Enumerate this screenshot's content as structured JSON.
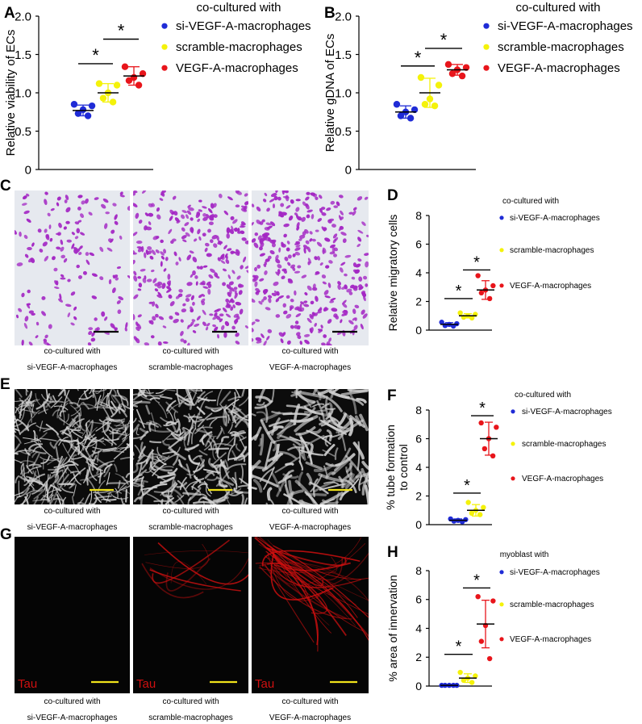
{
  "colors": {
    "si": "#1f2bd6",
    "scramble": "#f4f20a",
    "vegf": "#e8151b",
    "axis": "#000000",
    "micro_bg": "#e6e9ef",
    "micro_cell": "#a428c4",
    "tube_bg": "#0c0c0c",
    "tube_line": "#d0d0d0",
    "tau_bg": "#050505",
    "tau_fiber": "#d01010",
    "scalebar_dark": "#000000",
    "scalebar_yellow": "#f0e21a"
  },
  "legend_groups": [
    "si-VEGF-A-macrophages",
    "scramble-macrophages",
    "VEGF-A-macrophages"
  ],
  "sig_marker": "*",
  "panel_letters": {
    "A": "A",
    "B": "B",
    "C": "C",
    "D": "D",
    "E": "E",
    "F": "F",
    "G": "G",
    "H": "H"
  },
  "image_panels": {
    "C": {
      "captions": [
        [
          "co-cultured with",
          "si-VEGF-A-macrophages"
        ],
        [
          "co-cultured with",
          "scramble-macrophages"
        ],
        [
          "co-cultured with",
          "VEGF-A-macrophages"
        ]
      ]
    },
    "E": {
      "captions": [
        [
          "co-cultured with",
          "si-VEGF-A-macrophages"
        ],
        [
          "co-cultured with",
          "scramble-macrophages"
        ],
        [
          "co-cultured with",
          "VEGF-A-macrophages"
        ]
      ]
    },
    "G": {
      "stain": "Tau",
      "captions": [
        [
          "co-cultured with",
          "si-VEGF-A-macrophages"
        ],
        [
          "co-cultured with",
          "scramble-macrophages"
        ],
        [
          "co-cultured with",
          "VEGF-A-macrophages"
        ]
      ]
    }
  },
  "chart_data": [
    {
      "panel": "A",
      "type": "scatter",
      "legend_title": "co-cultured with",
      "ylabel": "Relative viability of ECs",
      "ylim": [
        0,
        2.0
      ],
      "yticks": [
        "0",
        "0.5",
        "1.0",
        "1.5",
        "2.0"
      ],
      "ytick_values": [
        0,
        0.5,
        1.0,
        1.5,
        2.0
      ],
      "groups": [
        {
          "name": "si-VEGF-A-macrophages",
          "color_key": "si",
          "mean": 0.77,
          "sd": 0.07,
          "points": [
            0.85,
            0.83,
            0.78,
            0.73,
            0.7
          ]
        },
        {
          "name": "scramble-macrophages",
          "color_key": "scramble",
          "mean": 1.0,
          "sd": 0.12,
          "points": [
            1.12,
            1.1,
            1.0,
            0.93,
            0.88
          ]
        },
        {
          "name": "VEGF-A-macrophages",
          "color_key": "vegf",
          "mean": 1.22,
          "sd": 0.12,
          "points": [
            1.34,
            1.25,
            1.2,
            1.16,
            1.1
          ]
        }
      ],
      "significance": [
        {
          "from": 0,
          "to": 1,
          "y": 1.38
        },
        {
          "from": 1,
          "to": 2,
          "y": 1.7
        }
      ]
    },
    {
      "panel": "B",
      "type": "scatter",
      "legend_title": "co-cultured with",
      "ylabel": "Relative gDNA of ECs",
      "ylim": [
        0,
        2.0
      ],
      "yticks": [
        "0",
        "0.5",
        "1.0",
        "1.5",
        "2.0"
      ],
      "ytick_values": [
        0,
        0.5,
        1.0,
        1.5,
        2.0
      ],
      "groups": [
        {
          "name": "si-VEGF-A-macrophages",
          "color_key": "si",
          "mean": 0.75,
          "sd": 0.08,
          "points": [
            0.85,
            0.78,
            0.75,
            0.7,
            0.67
          ]
        },
        {
          "name": "scramble-macrophages",
          "color_key": "scramble",
          "mean": 1.0,
          "sd": 0.19,
          "points": [
            1.2,
            1.1,
            0.92,
            0.85,
            0.83
          ]
        },
        {
          "name": "VEGF-A-macrophages",
          "color_key": "vegf",
          "mean": 1.3,
          "sd": 0.07,
          "points": [
            1.37,
            1.33,
            1.3,
            1.25,
            1.22
          ]
        }
      ],
      "significance": [
        {
          "from": 0,
          "to": 1,
          "y": 1.35
        },
        {
          "from": 1,
          "to": 2,
          "y": 1.58
        }
      ]
    },
    {
      "panel": "D",
      "type": "scatter",
      "legend_title": "co-cultured with",
      "ylabel": "Relative migratory cells",
      "ylim": [
        0,
        8
      ],
      "yticks": [
        "0",
        "2",
        "4",
        "6",
        "8"
      ],
      "ytick_values": [
        0,
        2,
        4,
        6,
        8
      ],
      "groups": [
        {
          "name": "si-VEGF-A-macrophages",
          "color_key": "si",
          "mean": 0.4,
          "sd": 0.12,
          "points": [
            0.55,
            0.45,
            0.4,
            0.32,
            0.28
          ]
        },
        {
          "name": "scramble-macrophages",
          "color_key": "scramble",
          "mean": 1.0,
          "sd": 0.15,
          "points": [
            1.2,
            1.1,
            1.0,
            0.9,
            0.85
          ]
        },
        {
          "name": "VEGF-A-macrophages",
          "color_key": "vegf",
          "mean": 2.8,
          "sd": 0.65,
          "points": [
            3.8,
            3.1,
            2.8,
            2.6,
            2.2
          ]
        }
      ],
      "significance": [
        {
          "from": 0,
          "to": 1,
          "y": 2.2
        },
        {
          "from": 1,
          "to": 2,
          "y": 4.2
        }
      ]
    },
    {
      "panel": "F",
      "type": "scatter",
      "legend_title": "co-cultured with",
      "ylabel": [
        "% tube formation",
        "to control"
      ],
      "ylim": [
        0,
        8
      ],
      "yticks": [
        "0",
        "2",
        "4",
        "6",
        "8"
      ],
      "ytick_values": [
        0,
        2,
        4,
        6,
        8
      ],
      "groups": [
        {
          "name": "si-VEGF-A-macrophages",
          "color_key": "si",
          "mean": 0.3,
          "sd": 0.1,
          "points": [
            0.4,
            0.35,
            0.3,
            0.25,
            0.2
          ]
        },
        {
          "name": "scramble-macrophages",
          "color_key": "scramble",
          "mean": 1.0,
          "sd": 0.4,
          "points": [
            1.55,
            1.2,
            1.0,
            0.8,
            0.7
          ]
        },
        {
          "name": "VEGF-A-macrophages",
          "color_key": "vegf",
          "mean": 6.0,
          "sd": 1.15,
          "points": [
            7.1,
            6.8,
            6.0,
            5.3,
            4.8
          ]
        }
      ],
      "significance": [
        {
          "from": 0,
          "to": 1,
          "y": 2.2
        },
        {
          "from": 1,
          "to": 2,
          "y": 7.6
        }
      ]
    },
    {
      "panel": "H",
      "type": "scatter",
      "legend_title": "myoblast with",
      "ylabel": "% area of innervation",
      "ylim": [
        0,
        8
      ],
      "yticks": [
        "0",
        "2",
        "4",
        "6",
        "8"
      ],
      "ytick_values": [
        0,
        2,
        4,
        6,
        8
      ],
      "groups": [
        {
          "name": "si-VEGF-A-macrophages",
          "color_key": "si",
          "mean": 0.05,
          "sd": 0.03,
          "points": [
            0.05,
            0.05,
            0.05,
            0.05,
            0.05
          ]
        },
        {
          "name": "scramble-macrophages",
          "color_key": "scramble",
          "mean": 0.55,
          "sd": 0.3,
          "points": [
            0.95,
            0.7,
            0.55,
            0.4,
            0.25
          ]
        },
        {
          "name": "VEGF-A-macrophages",
          "color_key": "vegf",
          "mean": 4.3,
          "sd": 1.65,
          "points": [
            6.2,
            5.9,
            4.2,
            3.1,
            1.9
          ]
        }
      ],
      "significance": [
        {
          "from": 0,
          "to": 1,
          "y": 2.2
        },
        {
          "from": 1,
          "to": 2,
          "y": 6.8
        }
      ]
    }
  ]
}
